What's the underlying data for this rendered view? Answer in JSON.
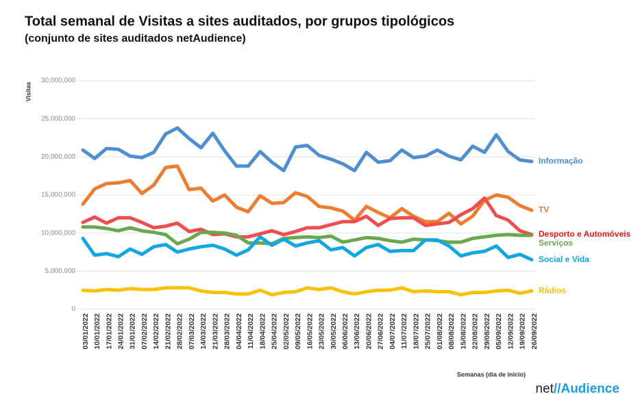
{
  "chart_data": {
    "type": "line",
    "title": "Total semanal de Visitas a sites auditados, por grupos tipológicos",
    "subtitle": "(conjunto de sites auditados netAudience)",
    "y_label": "Visitas",
    "x_label": "Semanas  (dia de início)",
    "logo": {
      "prefix": "net",
      "name": "//Audience"
    },
    "categories": [
      "03/01/2022",
      "10/01/2022",
      "17/01/2022",
      "24/01/2022",
      "31/01/2022",
      "07/02/2022",
      "14/02/2022",
      "21/02/2022",
      "28/02/2022",
      "07/03/2022",
      "14/03/2022",
      "21/03/2022",
      "28/03/2022",
      "04/04/2022",
      "11/04/2022",
      "18/04/2022",
      "25/04/2022",
      "02/05/2022",
      "09/05/2022",
      "16/05/2022",
      "23/05/2022",
      "30/05/2022",
      "06/06/2022",
      "13/06/2022",
      "20/06/2022",
      "27/06/2022",
      "04/07/2022",
      "11/07/2022",
      "18/07/2022",
      "25/07/2022",
      "01/08/2022",
      "08/08/2022",
      "15/08/2022",
      "22/08/2022",
      "29/08/2022",
      "05/09/2022",
      "12/09/2022",
      "19/09/2022",
      "26/09/2022"
    ],
    "ylim": [
      0,
      30000000
    ],
    "yticks": [
      0,
      {
        "value": 5000000,
        "label": "5,000,000"
      },
      {
        "value": 10000000,
        "label": "10,000,000"
      },
      {
        "value": 15000000,
        "label": "15,000,000"
      },
      {
        "value": 20000000,
        "label": "20,000,000"
      },
      {
        "value": 25000000,
        "label": "25,000,000"
      },
      {
        "value": 30000000,
        "label": "30,000,000"
      }
    ],
    "grid": true,
    "series": [
      {
        "name": "Informação",
        "color": "#4f8fcf",
        "values": [
          20900000,
          19800000,
          21100000,
          21000000,
          20100000,
          19900000,
          20600000,
          23000000,
          23800000,
          22400000,
          21200000,
          23100000,
          20800000,
          18800000,
          18800000,
          20700000,
          19300000,
          18200000,
          21300000,
          21500000,
          20200000,
          19700000,
          19100000,
          18200000,
          20600000,
          19300000,
          19500000,
          20900000,
          19900000,
          20100000,
          20900000,
          20100000,
          19600000,
          21400000,
          20600000,
          22900000,
          20700000,
          19600000,
          19400000
        ]
      },
      {
        "name": "TV",
        "color": "#ed7d31",
        "values": [
          13800000,
          15800000,
          16500000,
          16600000,
          16900000,
          15200000,
          16300000,
          18600000,
          18800000,
          15700000,
          15900000,
          14200000,
          15000000,
          13400000,
          12800000,
          14900000,
          13900000,
          14000000,
          15300000,
          14800000,
          13500000,
          13300000,
          12900000,
          11700000,
          13500000,
          12700000,
          12000000,
          13200000,
          12200000,
          11500000,
          11500000,
          12600000,
          11200000,
          12200000,
          14300000,
          15000000,
          14700000,
          13600000,
          13000000
        ]
      },
      {
        "name": "Desporto e Automóveis",
        "color": "#f04e4e",
        "label_color": "#e8151b",
        "values": [
          11400000,
          12100000,
          11300000,
          12000000,
          12000000,
          11400000,
          10700000,
          10900000,
          11300000,
          10200000,
          10500000,
          9800000,
          9900000,
          9500000,
          9500000,
          9900000,
          10300000,
          9800000,
          10200000,
          10700000,
          10700000,
          11100000,
          11500000,
          11500000,
          12200000,
          11000000,
          11900000,
          12000000,
          12000000,
          11000000,
          11200000,
          11400000,
          12400000,
          13200000,
          14600000,
          12300000,
          11700000,
          10300000,
          9800000
        ]
      },
      {
        "name": "Serviços",
        "color": "#6aa84f",
        "values": [
          10800000,
          10800000,
          10600000,
          10300000,
          10700000,
          10300000,
          10100000,
          9800000,
          8600000,
          9200000,
          10100000,
          10100000,
          10000000,
          9700000,
          8700000,
          8700000,
          8600000,
          9300000,
          9400000,
          9500000,
          9400000,
          9600000,
          8800000,
          9100000,
          9400000,
          9300000,
          9000000,
          8800000,
          9200000,
          9100000,
          9000000,
          8800000,
          8800000,
          9300000,
          9500000,
          9700000,
          9800000,
          9700000,
          9700000
        ]
      },
      {
        "name": "Social e Vida",
        "color": "#12a7e0",
        "values": [
          9300000,
          7100000,
          7300000,
          6900000,
          7900000,
          7200000,
          8200000,
          8500000,
          7500000,
          7900000,
          8200000,
          8400000,
          7900000,
          7100000,
          7800000,
          9500000,
          8400000,
          9200000,
          8300000,
          8700000,
          9000000,
          7800000,
          8100000,
          7000000,
          8100000,
          8500000,
          7600000,
          7700000,
          7700000,
          9100000,
          9100000,
          8300000,
          7000000,
          7400000,
          7600000,
          8300000,
          6800000,
          7200000,
          6500000
        ]
      },
      {
        "name": "Rádios",
        "color": "#f9c20a",
        "values": [
          2500000,
          2400000,
          2600000,
          2500000,
          2700000,
          2600000,
          2600000,
          2800000,
          2800000,
          2800000,
          2400000,
          2200000,
          2200000,
          2000000,
          2000000,
          2500000,
          1900000,
          2200000,
          2300000,
          2800000,
          2600000,
          2800000,
          2300000,
          2000000,
          2300000,
          2500000,
          2500000,
          2800000,
          2300000,
          2400000,
          2300000,
          2300000,
          1900000,
          2200000,
          2200000,
          2400000,
          2500000,
          2100000,
          2400000
        ]
      }
    ]
  }
}
